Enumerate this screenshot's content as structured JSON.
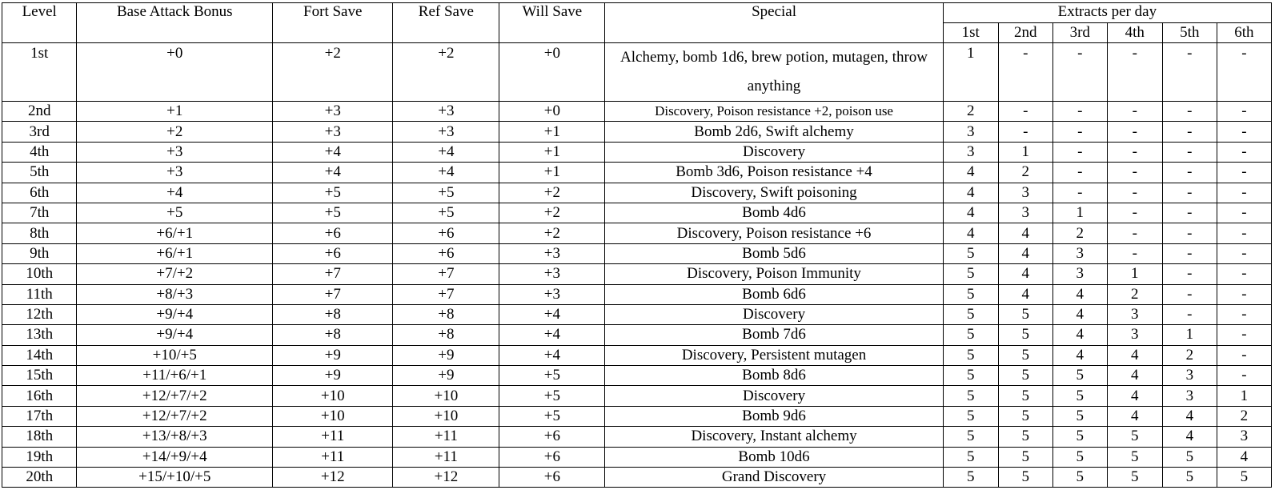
{
  "headers": {
    "level": "Level",
    "bab": "Base Attack Bonus",
    "fort": "Fort Save",
    "ref": "Ref Save",
    "will": "Will Save",
    "special": "Special",
    "extracts": "Extracts per day",
    "extract_levels": [
      "1st",
      "2nd",
      "3rd",
      "4th",
      "5th",
      "6th"
    ]
  },
  "rows": [
    {
      "level": "1st",
      "bab": "+0",
      "fort": "+2",
      "ref": "+2",
      "will": "+0",
      "special": "Alchemy, bomb 1d6, brew potion, mutagen, throw anything",
      "extracts": [
        "1",
        "-",
        "-",
        "-",
        "-",
        "-"
      ]
    },
    {
      "level": "2nd",
      "bab": "+1",
      "fort": "+3",
      "ref": "+3",
      "will": "+0",
      "special": "Discovery, Poison resistance +2, poison use",
      "extracts": [
        "2",
        "-",
        "-",
        "-",
        "-",
        "-"
      ]
    },
    {
      "level": "3rd",
      "bab": "+2",
      "fort": "+3",
      "ref": "+3",
      "will": "+1",
      "special": "Bomb 2d6, Swift alchemy",
      "extracts": [
        "3",
        "-",
        "-",
        "-",
        "-",
        "-"
      ]
    },
    {
      "level": "4th",
      "bab": "+3",
      "fort": "+4",
      "ref": "+4",
      "will": "+1",
      "special": "Discovery",
      "extracts": [
        "3",
        "1",
        "-",
        "-",
        "-",
        "-"
      ]
    },
    {
      "level": "5th",
      "bab": "+3",
      "fort": "+4",
      "ref": "+4",
      "will": "+1",
      "special": "Bomb 3d6, Poison resistance +4",
      "extracts": [
        "4",
        "2",
        "-",
        "-",
        "-",
        "-"
      ]
    },
    {
      "level": "6th",
      "bab": "+4",
      "fort": "+5",
      "ref": "+5",
      "will": "+2",
      "special": "Discovery, Swift poisoning",
      "extracts": [
        "4",
        "3",
        "-",
        "-",
        "-",
        "-"
      ]
    },
    {
      "level": "7th",
      "bab": "+5",
      "fort": "+5",
      "ref": "+5",
      "will": "+2",
      "special": "Bomb 4d6",
      "extracts": [
        "4",
        "3",
        "1",
        "-",
        "-",
        "-"
      ]
    },
    {
      "level": "8th",
      "bab": "+6/+1",
      "fort": "+6",
      "ref": "+6",
      "will": "+2",
      "special": "Discovery, Poison resistance +6",
      "extracts": [
        "4",
        "4",
        "2",
        "-",
        "-",
        "-"
      ]
    },
    {
      "level": "9th",
      "bab": "+6/+1",
      "fort": "+6",
      "ref": "+6",
      "will": "+3",
      "special": "Bomb 5d6",
      "extracts": [
        "5",
        "4",
        "3",
        "-",
        "-",
        "-"
      ]
    },
    {
      "level": "10th",
      "bab": "+7/+2",
      "fort": "+7",
      "ref": "+7",
      "will": "+3",
      "special": "Discovery, Poison Immunity",
      "extracts": [
        "5",
        "4",
        "3",
        "1",
        "-",
        "-"
      ]
    },
    {
      "level": "11th",
      "bab": "+8/+3",
      "fort": "+7",
      "ref": "+7",
      "will": "+3",
      "special": "Bomb 6d6",
      "extracts": [
        "5",
        "4",
        "4",
        "2",
        "-",
        "-"
      ]
    },
    {
      "level": "12th",
      "bab": "+9/+4",
      "fort": "+8",
      "ref": "+8",
      "will": "+4",
      "special": "Discovery",
      "extracts": [
        "5",
        "5",
        "4",
        "3",
        "-",
        "-"
      ]
    },
    {
      "level": "13th",
      "bab": "+9/+4",
      "fort": "+8",
      "ref": "+8",
      "will": "+4",
      "special": "Bomb 7d6",
      "extracts": [
        "5",
        "5",
        "4",
        "3",
        "1",
        "-"
      ]
    },
    {
      "level": "14th",
      "bab": "+10/+5",
      "fort": "+9",
      "ref": "+9",
      "will": "+4",
      "special": "Discovery, Persistent mutagen",
      "extracts": [
        "5",
        "5",
        "4",
        "4",
        "2",
        "-"
      ]
    },
    {
      "level": "15th",
      "bab": "+11/+6/+1",
      "fort": "+9",
      "ref": "+9",
      "will": "+5",
      "special": "Bomb 8d6",
      "extracts": [
        "5",
        "5",
        "5",
        "4",
        "3",
        "-"
      ]
    },
    {
      "level": "16th",
      "bab": "+12/+7/+2",
      "fort": "+10",
      "ref": "+10",
      "will": "+5",
      "special": "Discovery",
      "extracts": [
        "5",
        "5",
        "5",
        "4",
        "3",
        "1"
      ]
    },
    {
      "level": "17th",
      "bab": "+12/+7/+2",
      "fort": "+10",
      "ref": "+10",
      "will": "+5",
      "special": "Bomb 9d6",
      "extracts": [
        "5",
        "5",
        "5",
        "4",
        "4",
        "2"
      ]
    },
    {
      "level": "18th",
      "bab": "+13/+8/+3",
      "fort": "+11",
      "ref": "+11",
      "will": "+6",
      "special": "Discovery, Instant alchemy",
      "extracts": [
        "5",
        "5",
        "5",
        "5",
        "4",
        "3"
      ]
    },
    {
      "level": "19th",
      "bab": "+14/+9/+4",
      "fort": "+11",
      "ref": "+11",
      "will": "+6",
      "special": "Bomb 10d6",
      "extracts": [
        "5",
        "5",
        "5",
        "5",
        "5",
        "4"
      ]
    },
    {
      "level": "20th",
      "bab": "+15/+10/+5",
      "fort": "+12",
      "ref": "+12",
      "will": "+6",
      "special": "Grand Discovery",
      "extracts": [
        "5",
        "5",
        "5",
        "5",
        "5",
        "5"
      ]
    }
  ]
}
